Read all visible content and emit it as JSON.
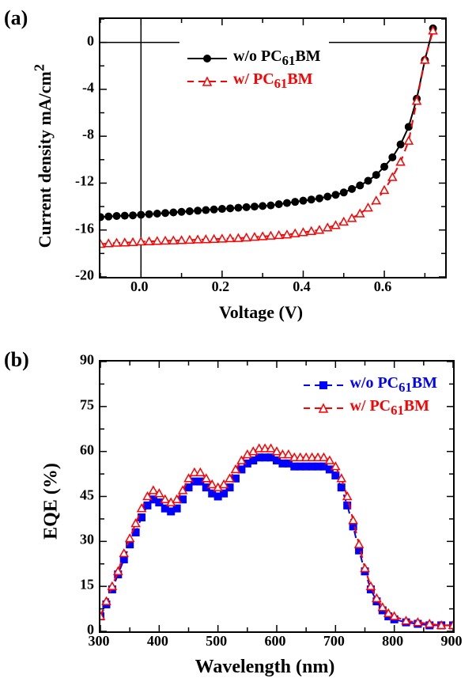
{
  "panel_a": {
    "label": "(a)",
    "label_fontsize": 26,
    "plot": {
      "xlabel": "Voltage (V)",
      "ylabel": "Current density mA/cm²",
      "xlabel_html": "Voltage (V)",
      "ylabel_html": "Current density mA/cm<sup>2</sup>",
      "label_fontsize": 22,
      "tick_fontsize": 18,
      "xlim": [
        -0.1,
        0.75
      ],
      "ylim": [
        -20,
        2
      ],
      "xticks": [
        0.0,
        0.2,
        0.4,
        0.6
      ],
      "yticks": [
        -20,
        -16,
        -12,
        -8,
        -4,
        0
      ],
      "zero_x_line": true,
      "zero_y_line": true,
      "line_width": 2,
      "marker_size": 5,
      "minor_ticks": true,
      "background_color": "#ffffff",
      "axis_color": "#000000",
      "legend": {
        "position": "top-center",
        "items": [
          {
            "label_html": "w/o PC<sub>61</sub>BM",
            "color": "#000000",
            "marker": "circle-filled",
            "dash": "solid"
          },
          {
            "label_html": "w/  PC<sub>61</sub>BM",
            "color": "#ff0000",
            "marker": "triangle-open",
            "dash": "dash"
          }
        ]
      },
      "series": [
        {
          "name": "w/o PC61BM",
          "color": "#000000",
          "dash": "solid",
          "marker": "circle-filled",
          "x": [
            -0.1,
            -0.08,
            -0.06,
            -0.04,
            -0.02,
            0.0,
            0.02,
            0.04,
            0.06,
            0.08,
            0.1,
            0.12,
            0.14,
            0.16,
            0.18,
            0.2,
            0.22,
            0.24,
            0.26,
            0.28,
            0.3,
            0.32,
            0.34,
            0.36,
            0.38,
            0.4,
            0.42,
            0.44,
            0.46,
            0.48,
            0.5,
            0.52,
            0.54,
            0.56,
            0.58,
            0.6,
            0.62,
            0.64,
            0.66,
            0.68,
            0.7,
            0.72
          ],
          "y": [
            -14.9,
            -14.85,
            -14.8,
            -14.78,
            -14.75,
            -14.7,
            -14.65,
            -14.6,
            -14.55,
            -14.5,
            -14.45,
            -14.4,
            -14.35,
            -14.3,
            -14.25,
            -14.2,
            -14.15,
            -14.1,
            -14.05,
            -14.0,
            -13.95,
            -13.9,
            -13.8,
            -13.7,
            -13.6,
            -13.5,
            -13.4,
            -13.3,
            -13.15,
            -13.0,
            -12.8,
            -12.5,
            -12.2,
            -11.8,
            -11.3,
            -10.6,
            -9.8,
            -8.7,
            -7.2,
            -4.8,
            -1.5,
            1.2
          ]
        },
        {
          "name": "w/ PC61BM",
          "color": "#ff0000",
          "dash": "dash",
          "marker": "triangle-open",
          "x": [
            -0.1,
            -0.08,
            -0.06,
            -0.04,
            -0.02,
            0.0,
            0.02,
            0.04,
            0.06,
            0.08,
            0.1,
            0.12,
            0.14,
            0.16,
            0.18,
            0.2,
            0.22,
            0.24,
            0.26,
            0.28,
            0.3,
            0.32,
            0.34,
            0.36,
            0.38,
            0.4,
            0.42,
            0.44,
            0.46,
            0.48,
            0.5,
            0.52,
            0.54,
            0.56,
            0.58,
            0.6,
            0.62,
            0.64,
            0.66,
            0.68,
            0.7,
            0.72
          ],
          "y": [
            -17.2,
            -17.15,
            -17.1,
            -17.08,
            -17.05,
            -17.0,
            -16.98,
            -16.95,
            -16.92,
            -16.9,
            -16.88,
            -16.85,
            -16.82,
            -16.8,
            -16.78,
            -16.75,
            -16.72,
            -16.7,
            -16.65,
            -16.6,
            -16.55,
            -16.5,
            -16.45,
            -16.4,
            -16.3,
            -16.2,
            -16.1,
            -16.0,
            -15.8,
            -15.6,
            -15.3,
            -15.0,
            -14.6,
            -14.1,
            -13.5,
            -12.6,
            -11.5,
            -10.2,
            -8.4,
            -5.0,
            -1.5,
            1.0
          ]
        }
      ]
    }
  },
  "panel_b": {
    "label": "(b)",
    "label_fontsize": 26,
    "plot": {
      "xlabel": "Wavelength (nm)",
      "ylabel": "EQE (%)",
      "label_fontsize": 22,
      "tick_fontsize": 18,
      "xlim": [
        300,
        900
      ],
      "ylim": [
        0,
        90
      ],
      "xticks": [
        300,
        400,
        500,
        600,
        700,
        800,
        900
      ],
      "yticks": [
        0,
        15,
        30,
        45,
        60,
        75,
        90
      ],
      "line_width": 2,
      "marker_size": 5,
      "minor_ticks": true,
      "background_color": "#ffffff",
      "axis_color": "#000000",
      "legend": {
        "position": "top-right",
        "items": [
          {
            "label_html": "w/o PC<sub>61</sub>BM",
            "color": "#0000ff",
            "marker": "square-filled",
            "dash": "dash"
          },
          {
            "label_html": "w/  PC<sub>61</sub>BM",
            "color": "#ff0000",
            "marker": "triangle-open",
            "dash": "dash"
          }
        ]
      },
      "series": [
        {
          "name": "w/o PC61BM",
          "color": "#0000ff",
          "dash": "dash",
          "marker": "square-filled",
          "x": [
            300,
            310,
            320,
            330,
            340,
            350,
            360,
            370,
            380,
            390,
            400,
            410,
            420,
            430,
            440,
            450,
            460,
            470,
            480,
            490,
            500,
            510,
            520,
            530,
            540,
            550,
            560,
            570,
            580,
            590,
            600,
            610,
            620,
            630,
            640,
            650,
            660,
            670,
            680,
            690,
            700,
            710,
            720,
            730,
            740,
            750,
            760,
            770,
            780,
            790,
            800,
            820,
            840,
            860,
            880,
            900
          ],
          "y": [
            5,
            9,
            14,
            19,
            24,
            29,
            33,
            38,
            42,
            44,
            43,
            41,
            40,
            41,
            44,
            48,
            50,
            50,
            48,
            46,
            45,
            46,
            48,
            51,
            54,
            56,
            57,
            58,
            58,
            58,
            57,
            56,
            56,
            55,
            55,
            55,
            55,
            55,
            55,
            54,
            52,
            48,
            42,
            35,
            27,
            20,
            14,
            10,
            7,
            5,
            4,
            3,
            2.5,
            2,
            2,
            2
          ]
        },
        {
          "name": "w/ PC61BM",
          "color": "#ff0000",
          "dash": "dash",
          "marker": "triangle-open",
          "x": [
            300,
            310,
            320,
            330,
            340,
            350,
            360,
            370,
            380,
            390,
            400,
            410,
            420,
            430,
            440,
            450,
            460,
            470,
            480,
            490,
            500,
            510,
            520,
            530,
            540,
            550,
            560,
            570,
            580,
            590,
            600,
            610,
            620,
            630,
            640,
            650,
            660,
            670,
            680,
            690,
            700,
            710,
            720,
            730,
            740,
            750,
            760,
            770,
            780,
            790,
            800,
            820,
            840,
            860,
            880,
            900
          ],
          "y": [
            5,
            10,
            15,
            20,
            26,
            31,
            36,
            41,
            45,
            47,
            46,
            44,
            43,
            44,
            47,
            51,
            53,
            53,
            51,
            49,
            48,
            49,
            51,
            54,
            57,
            59,
            60,
            61,
            61,
            61,
            60,
            59,
            59,
            58,
            58,
            58,
            58,
            58,
            58,
            57,
            55,
            51,
            45,
            37,
            29,
            21,
            15,
            11,
            8,
            6,
            5,
            3.5,
            3,
            2.5,
            2,
            2
          ]
        }
      ]
    }
  }
}
